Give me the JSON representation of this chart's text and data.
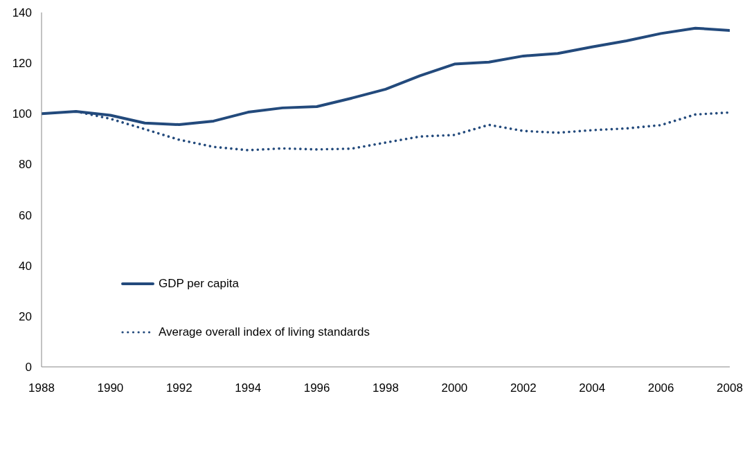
{
  "chart_data": {
    "type": "line",
    "x": [
      1988,
      1989,
      1990,
      1991,
      1992,
      1993,
      1994,
      1995,
      1996,
      1997,
      1998,
      1999,
      2000,
      2001,
      2002,
      2003,
      2004,
      2005,
      2006,
      2007,
      2008
    ],
    "series": [
      {
        "name": "GDP per capita",
        "color": "#234a7c",
        "line_style": "solid",
        "values": [
          100,
          100.9,
          99.4,
          96.3,
          95.7,
          97.1,
          100.6,
          102.3,
          102.8,
          106.1,
          109.7,
          115,
          119.6,
          120.4,
          122.8,
          123.8,
          126.4,
          128.8,
          131.7,
          133.8,
          132.9
        ]
      },
      {
        "name": "Average overall index of living standards",
        "color": "#234a7c",
        "line_style": "dotted",
        "values": [
          null,
          100.9,
          98,
          93.9,
          89.7,
          86.9,
          85.6,
          86.3,
          85.9,
          86.2,
          88.6,
          91,
          91.6,
          95.6,
          93.2,
          92.5,
          93.5,
          94.2,
          95.5,
          99.7,
          100.5
        ]
      }
    ],
    "xlim": [
      1988,
      2008
    ],
    "xticks": [
      1988,
      1990,
      1992,
      1994,
      1996,
      1998,
      2000,
      2002,
      2004,
      2006,
      2008
    ],
    "ylim": [
      0,
      140
    ],
    "yticks": [
      0,
      20,
      40,
      60,
      80,
      100,
      120,
      140
    ],
    "grid": false,
    "legend": "left"
  }
}
